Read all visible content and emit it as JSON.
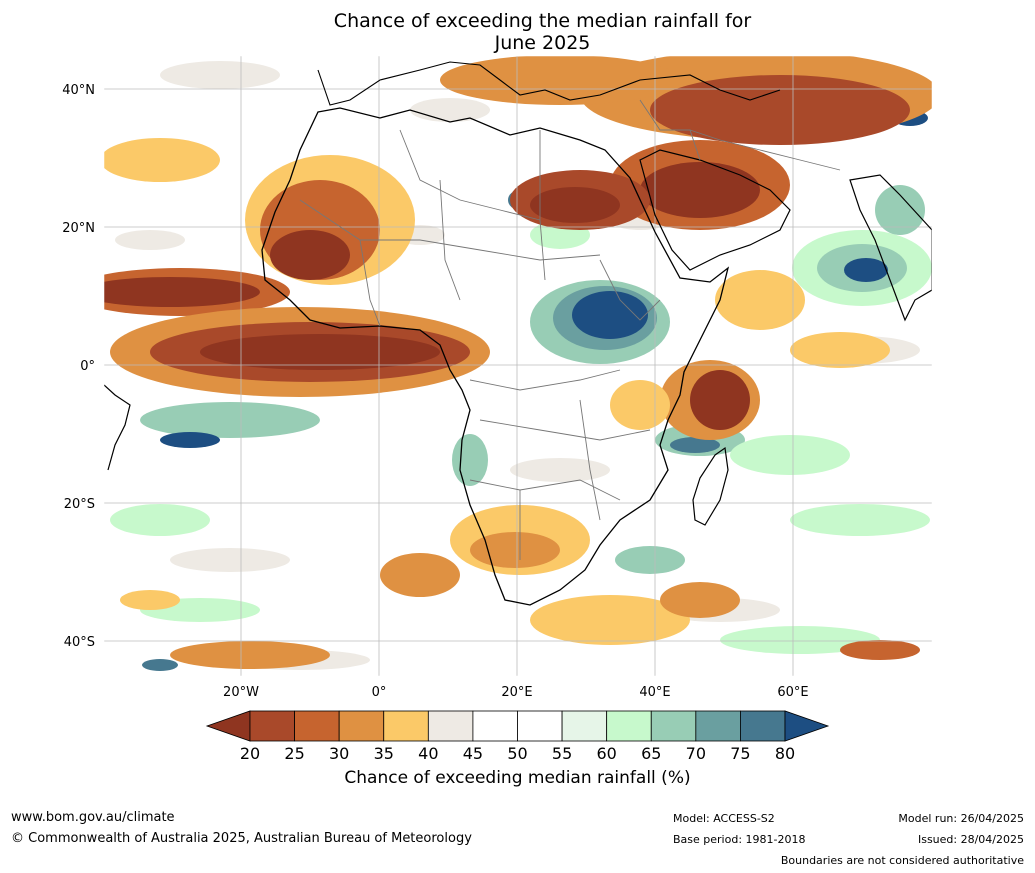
{
  "title_line1": "Chance of exceeding the median rainfall for",
  "title_line2": "June 2025",
  "axes": {
    "y_ticks": [
      "40°N",
      "20°N",
      "0°",
      "20°S",
      "40°S"
    ],
    "x_ticks": [
      "20°W",
      "0°",
      "20°E",
      "40°E",
      "60°E"
    ]
  },
  "colorbar": {
    "label": "Chance of exceeding median rainfall (%)",
    "ticks": [
      "20",
      "25",
      "30",
      "35",
      "40",
      "45",
      "50",
      "55",
      "60",
      "65",
      "70",
      "75",
      "80"
    ],
    "colors": [
      "#8f3520",
      "#a9492a",
      "#c6642f",
      "#df9142",
      "#fbc968",
      "#eeeae4",
      "#ffffff",
      "#ffffff",
      "#e6f5e8",
      "#c7f9cc",
      "#98cdb5",
      "#6a9fa0",
      "#46788f",
      "#1d4e82"
    ]
  },
  "footer": {
    "website": "www.bom.gov.au/climate",
    "copyright": "© Commonwealth of Australia 2025, Australian Bureau of Meteorology",
    "model": "Model: ACCESS-S2",
    "base_period": "Base period: 1981-2018",
    "model_run": "Model run: 26/04/2025",
    "issued": "Issued: 28/04/2025",
    "disclaimer": "Boundaries are not considered authoritative"
  }
}
